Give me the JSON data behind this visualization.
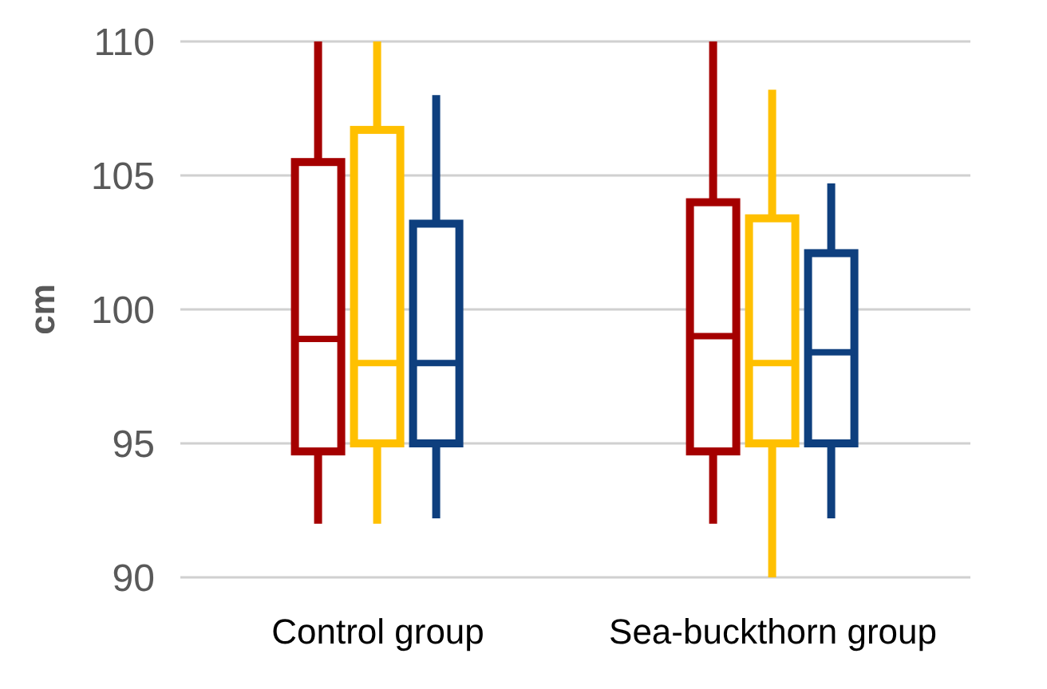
{
  "chart_data": {
    "type": "box",
    "ylabel": "cm",
    "categories": [
      "Control group",
      "Sea-buckthorn group"
    ],
    "series": [
      {
        "color": "#a50000",
        "boxes": [
          {
            "low": 92,
            "q1": 94.7,
            "median": 98.9,
            "q3": 105.5,
            "high": 110
          },
          {
            "low": 92,
            "q1": 94.7,
            "median": 99,
            "q3": 104,
            "high": 110
          }
        ]
      },
      {
        "color": "#ffc000",
        "boxes": [
          {
            "low": 92,
            "q1": 95,
            "median": 98,
            "q3": 106.7,
            "high": 110
          },
          {
            "low": 90,
            "q1": 95,
            "median": 98,
            "q3": 103.4,
            "high": 108.2
          }
        ]
      },
      {
        "color": "#0e3f7e",
        "boxes": [
          {
            "low": 92.2,
            "q1": 95,
            "median": 98,
            "q3": 103.2,
            "high": 108
          },
          {
            "low": 92.2,
            "q1": 95,
            "median": 98.4,
            "q3": 102.1,
            "high": 104.7
          }
        ]
      }
    ],
    "ylim": [
      90,
      110
    ],
    "yticks": [
      90,
      95,
      100,
      105,
      110
    ],
    "grid": "y",
    "legend": false
  }
}
